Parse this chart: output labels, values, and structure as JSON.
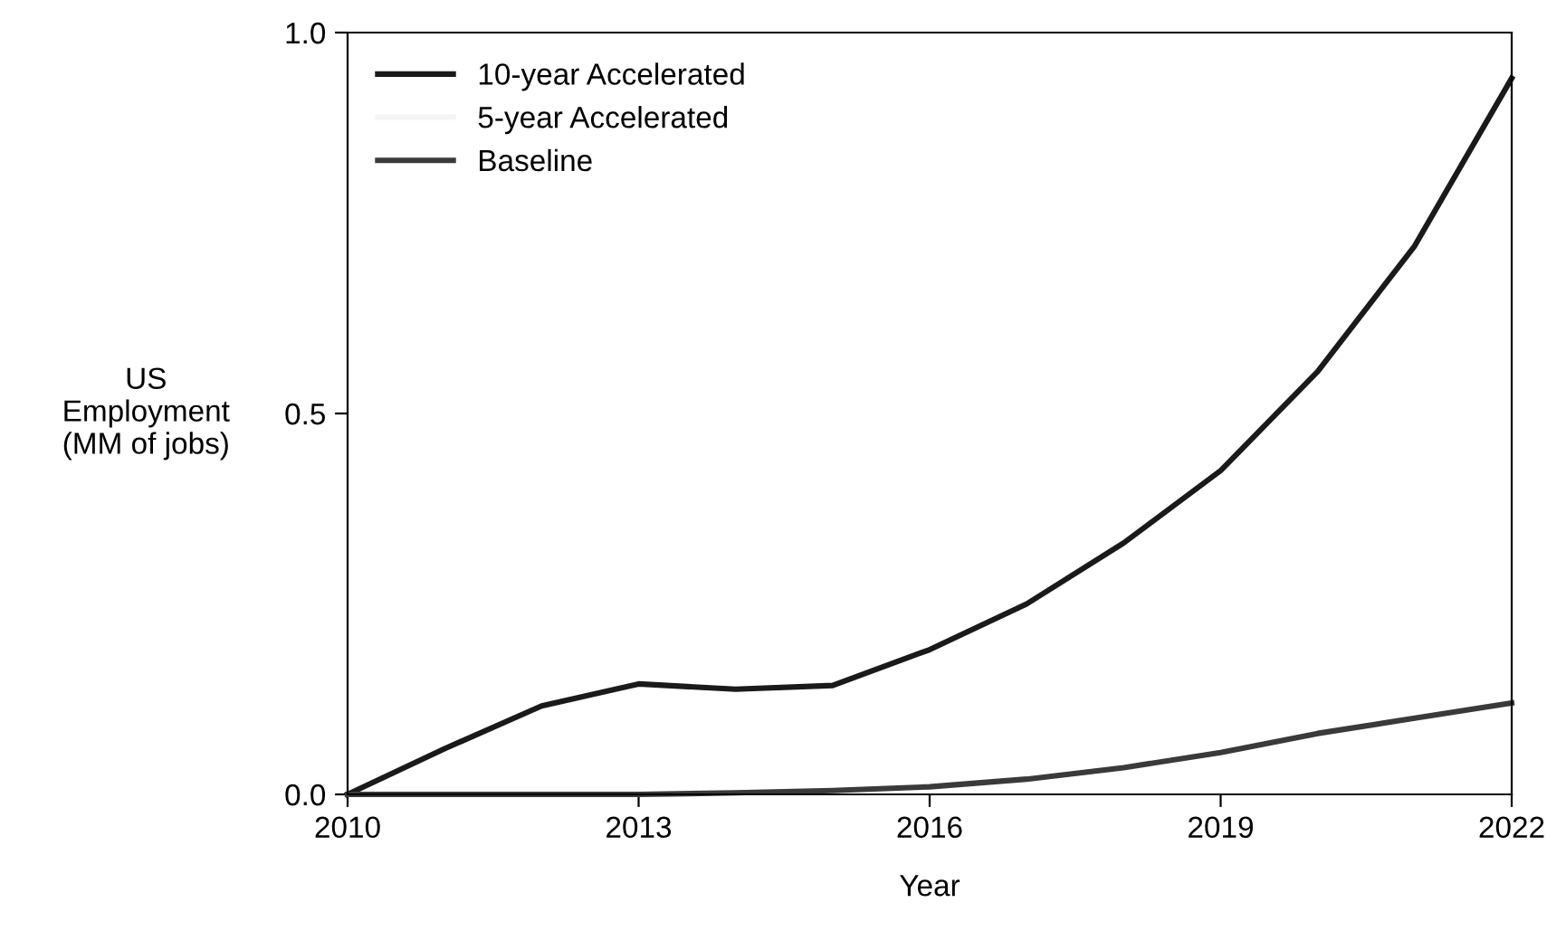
{
  "chart_data": {
    "type": "line",
    "xlabel": "Year",
    "ylabel": "US\nEmployment\n(MM of jobs)",
    "x": [
      2010,
      2011,
      2012,
      2013,
      2014,
      2015,
      2016,
      2017,
      2018,
      2019,
      2020,
      2021,
      2022
    ],
    "series": [
      {
        "name": "10-year Accelerated",
        "color": "#1a1a1a",
        "values": [
          0,
          0.06,
          0.116,
          0.145,
          0.138,
          0.143,
          0.19,
          0.25,
          0.33,
          0.425,
          0.555,
          0.72,
          0.94
        ]
      },
      {
        "name": "5-year Accelerated",
        "color": "#f4f4f4",
        "values": [
          null,
          null,
          null,
          null,
          null,
          null,
          null,
          null,
          null,
          null,
          null,
          null,
          null
        ]
      },
      {
        "name": "Baseline",
        "color": "#3a3a3a",
        "values": [
          0,
          0,
          0,
          0,
          0.002,
          0.005,
          0.01,
          0.02,
          0.035,
          0.055,
          0.08,
          0.1,
          0.12
        ]
      }
    ],
    "xlim": [
      2010,
      2022
    ],
    "xticks": [
      2010,
      2013,
      2016,
      2019,
      2022
    ],
    "ylim": [
      0,
      1.0
    ],
    "yticks": [
      {
        "value": 0,
        "label": "0.0"
      },
      {
        "value": 0.5,
        "label": "0.5"
      },
      {
        "value": 1.0,
        "label": "1.0"
      }
    ],
    "grid": false,
    "legend": "top left",
    "line_style": "solid",
    "marker": "none"
  }
}
